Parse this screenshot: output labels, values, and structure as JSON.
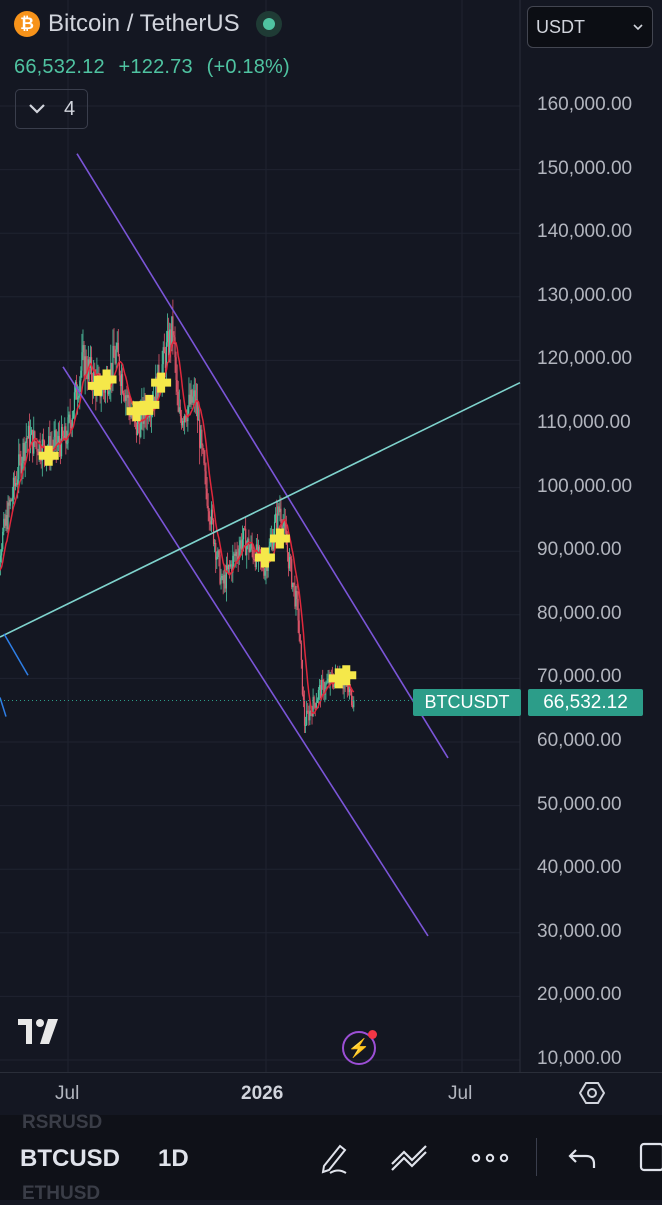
{
  "header": {
    "logo_glyph": "₿",
    "title": "Bitcoin / TetherUS",
    "last_price": "66,532.12",
    "change": "+122.73",
    "change_pct": "(+0.18%)",
    "indicator_count": "4",
    "currency": "USDT"
  },
  "price_tag": {
    "symbol": "BTCUSDT",
    "value": "66,532.12"
  },
  "time_axis": {
    "labels": [
      "Jul",
      "2026",
      "Jul"
    ]
  },
  "bottom_bar": {
    "symbol": "BTCUSD",
    "interval": "1D",
    "ghost_above": "RSRUSD",
    "ghost_below": "ETHUSD"
  },
  "colors": {
    "background": "#141722",
    "up": "#4fc3a1",
    "down": "#e0566a",
    "ma": "#e0283c",
    "channel": "#7b55d8",
    "trendline": "#7fd3cd",
    "marker": "#f5e84a",
    "price_tag": "#2c9d89"
  },
  "chart_data": {
    "type": "candlestick",
    "interval": "1D",
    "y_axis": {
      "ticks": [
        "160,000.00",
        "150,000.00",
        "140,000.00",
        "130,000.00",
        "120,000.00",
        "110,000.00",
        "100,000.00",
        "90,000.00",
        "80,000.00",
        "70,000.00",
        "60,000.00",
        "50,000.00",
        "40,000.00",
        "30,000.00",
        "20,000.00",
        "10,000.00"
      ],
      "range": [
        10000,
        160000
      ]
    },
    "x_axis": {
      "ticks": [
        "Jul",
        "2026",
        "Jul"
      ]
    },
    "series_close_path": [
      {
        "date": "2025-04-20",
        "close": 85000
      },
      {
        "date": "2025-05-05",
        "close": 96000
      },
      {
        "date": "2025-05-22",
        "close": 108000
      },
      {
        "date": "2025-06-10",
        "close": 106000
      },
      {
        "date": "2025-06-28",
        "close": 107500
      },
      {
        "date": "2025-07-14",
        "close": 120000
      },
      {
        "date": "2025-08-01",
        "close": 115000
      },
      {
        "date": "2025-08-14",
        "close": 121000
      },
      {
        "date": "2025-09-01",
        "close": 109000
      },
      {
        "date": "2025-09-20",
        "close": 115500
      },
      {
        "date": "2025-10-06",
        "close": 125000
      },
      {
        "date": "2025-10-11",
        "close": 111000
      },
      {
        "date": "2025-10-27",
        "close": 114000
      },
      {
        "date": "2025-11-05",
        "close": 101000
      },
      {
        "date": "2025-11-21",
        "close": 84500
      },
      {
        "date": "2025-12-10",
        "close": 92000
      },
      {
        "date": "2025-12-31",
        "close": 87500
      },
      {
        "date": "2026-01-14",
        "close": 97000
      },
      {
        "date": "2026-01-31",
        "close": 80000
      },
      {
        "date": "2026-02-06",
        "close": 63000
      },
      {
        "date": "2026-02-20",
        "close": 68000
      },
      {
        "date": "2026-03-10",
        "close": 70500
      },
      {
        "date": "2026-03-24",
        "close": 66532.12
      }
    ],
    "markers": [
      {
        "date": "2025-06-12",
        "price": 105000
      },
      {
        "date": "2025-07-28",
        "price": 116000
      },
      {
        "date": "2025-08-05",
        "price": 117000
      },
      {
        "date": "2025-09-02",
        "price": 112000
      },
      {
        "date": "2025-09-14",
        "price": 113000
      },
      {
        "date": "2025-09-25",
        "price": 116500
      },
      {
        "date": "2025-12-31",
        "price": 89000
      },
      {
        "date": "2026-01-14",
        "price": 92000
      },
      {
        "date": "2026-03-10",
        "price": 70000
      },
      {
        "date": "2026-03-17",
        "price": 70500
      }
    ],
    "last_price": 66532.12,
    "grid": true
  }
}
